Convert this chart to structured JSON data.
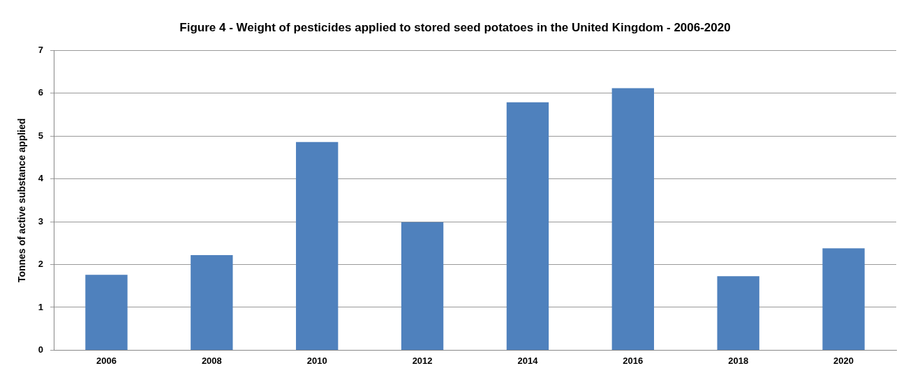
{
  "chart_data": {
    "type": "bar",
    "title": "Figure 4 - Weight of pesticides applied to stored seed potatoes in the United Kingdom - 2006-2020",
    "ylabel": "Tonnes of active substance applied",
    "categories": [
      "2006",
      "2008",
      "2010",
      "2012",
      "2014",
      "2016",
      "2018",
      "2020"
    ],
    "values": [
      1.76,
      2.22,
      4.86,
      2.99,
      5.79,
      6.12,
      1.73,
      2.38
    ],
    "color": "#4f81bd",
    "ylim": [
      0,
      7
    ],
    "yticks": [
      0,
      1,
      2,
      3,
      4,
      5,
      6,
      7
    ],
    "grid": "y",
    "legend": false
  }
}
